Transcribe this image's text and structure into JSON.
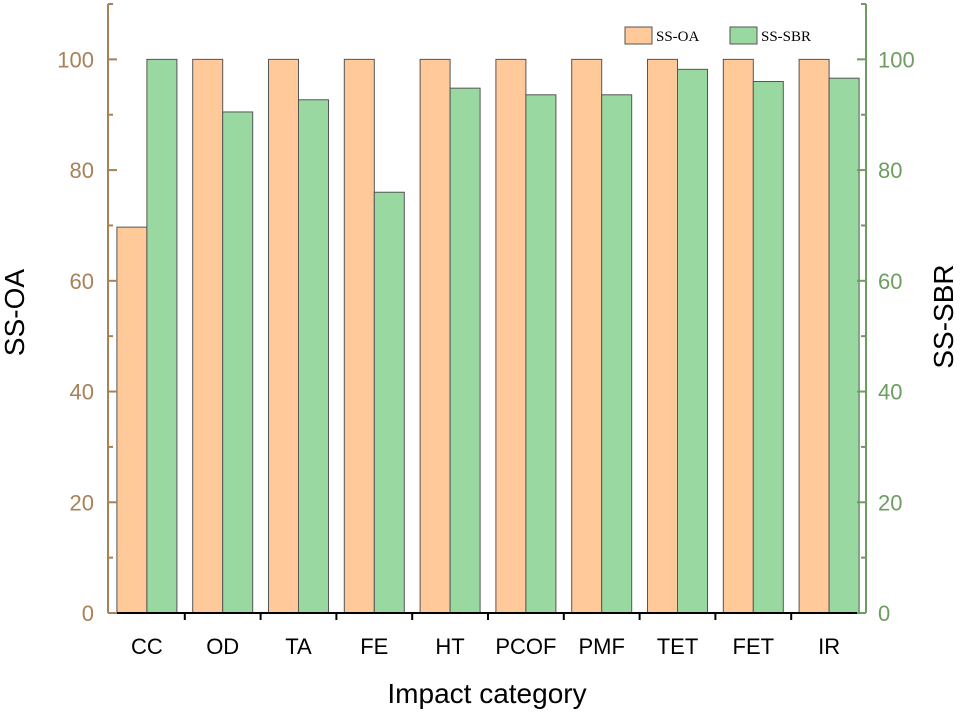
{
  "chart_data": {
    "type": "bar",
    "xlabel": "Impact category",
    "ylabel_left": "SS-OA",
    "ylabel_right": "SS-SBR",
    "ylim": [
      0,
      110
    ],
    "yticks": [
      0,
      20,
      40,
      60,
      80,
      100
    ],
    "categories": [
      "CC",
      "OD",
      "TA",
      "FE",
      "HT",
      "PCOF",
      "PMF",
      "TET",
      "FET",
      "IR"
    ],
    "series": [
      {
        "name": "SS-OA",
        "axis": "left",
        "color": "#FFC999",
        "values": [
          69.7,
          100,
          100,
          100,
          100,
          100,
          100,
          100,
          100,
          100
        ]
      },
      {
        "name": "SS-SBR",
        "axis": "right",
        "color": "#99D8A0",
        "values": [
          100,
          90.5,
          92.7,
          76.0,
          94.8,
          93.6,
          93.6,
          98.2,
          96.0,
          96.6
        ]
      }
    ],
    "axis_colors": {
      "left": "#A88158",
      "right": "#6E9C61"
    },
    "legend_position": "top-right",
    "grid": false
  }
}
